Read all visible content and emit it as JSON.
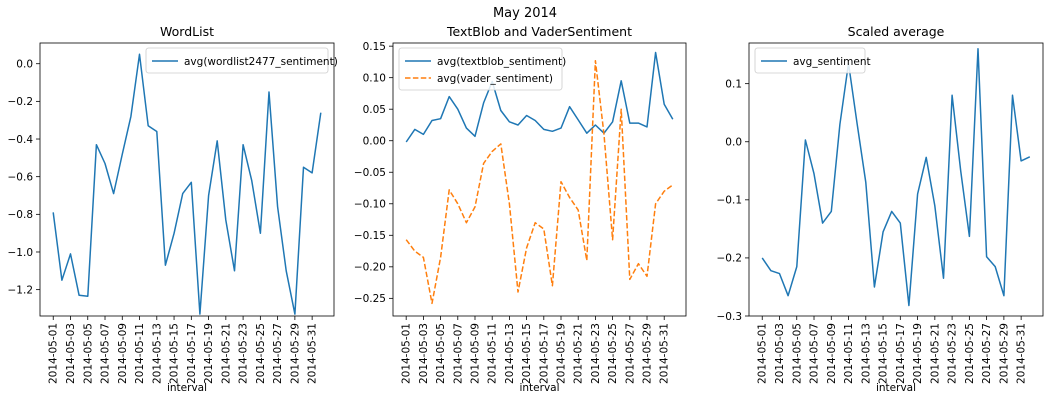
{
  "suptitle": "May 2014",
  "chart_data": [
    {
      "type": "line",
      "title": "WordList",
      "xlabel": "interval",
      "ylabel": "",
      "ylim": [
        -1.34,
        0.11
      ],
      "yticks": [
        0.0,
        -0.2,
        -0.4,
        -0.6,
        -0.8,
        -1.0,
        -1.2
      ],
      "ytick_labels": [
        "0.0",
        "−0.2",
        "−0.4",
        "−0.6",
        "−0.8",
        "−1.0",
        "−1.2"
      ],
      "grid": false,
      "legend": "upper right",
      "x": [
        "2014-05-01",
        "2014-05-02",
        "2014-05-03",
        "2014-05-04",
        "2014-05-05",
        "2014-05-06",
        "2014-05-07",
        "2014-05-08",
        "2014-05-09",
        "2014-05-10",
        "2014-05-11",
        "2014-05-12",
        "2014-05-13",
        "2014-05-14",
        "2014-05-15",
        "2014-05-16",
        "2014-05-17",
        "2014-05-18",
        "2014-05-19",
        "2014-05-20",
        "2014-05-21",
        "2014-05-22",
        "2014-05-23",
        "2014-05-24",
        "2014-05-25",
        "2014-05-26",
        "2014-05-27",
        "2014-05-28",
        "2014-05-29",
        "2014-05-30",
        "2014-05-31",
        "2014-06-01"
      ],
      "xtick_labels": [
        "2014-05-01",
        "2014-05-03",
        "2014-05-05",
        "2014-05-07",
        "2014-05-09",
        "2014-05-11",
        "2014-05-13",
        "2014-05-15",
        "2014-05-17",
        "2014-05-19",
        "2014-05-21",
        "2014-05-23",
        "2014-05-25",
        "2014-05-27",
        "2014-05-29",
        "2014-05-31"
      ],
      "series": [
        {
          "name": "avg(wordlist2477_sentiment)",
          "color": "#1f77b4",
          "dash": "solid",
          "values": [
            -0.79,
            -1.15,
            -1.01,
            -1.23,
            -1.235,
            -0.43,
            -0.53,
            -0.69,
            -0.48,
            -0.28,
            0.05,
            -0.33,
            -0.36,
            -1.07,
            -0.9,
            -0.69,
            -0.63,
            -1.33,
            -0.7,
            -0.41,
            -0.83,
            -1.1,
            -0.43,
            -0.62,
            -0.9,
            -0.15,
            -0.76,
            -1.1,
            -1.33,
            -0.55,
            -0.58,
            -0.26
          ]
        }
      ]
    },
    {
      "type": "line",
      "title": "TextBlob and VaderSentiment",
      "xlabel": "interval",
      "ylabel": "",
      "ylim": [
        -0.278,
        0.155
      ],
      "yticks": [
        0.15,
        0.1,
        0.05,
        0.0,
        -0.05,
        -0.1,
        -0.15,
        -0.2,
        -0.25
      ],
      "ytick_labels": [
        "0.15",
        "0.10",
        "0.05",
        "0.00",
        "−0.05",
        "−0.10",
        "−0.15",
        "−0.20",
        "−0.25"
      ],
      "grid": false,
      "legend": "upper left",
      "x": [
        "2014-05-01",
        "2014-05-02",
        "2014-05-03",
        "2014-05-04",
        "2014-05-05",
        "2014-05-06",
        "2014-05-07",
        "2014-05-08",
        "2014-05-09",
        "2014-05-10",
        "2014-05-11",
        "2014-05-12",
        "2014-05-13",
        "2014-05-14",
        "2014-05-15",
        "2014-05-16",
        "2014-05-17",
        "2014-05-18",
        "2014-05-19",
        "2014-05-20",
        "2014-05-21",
        "2014-05-22",
        "2014-05-23",
        "2014-05-24",
        "2014-05-25",
        "2014-05-26",
        "2014-05-27",
        "2014-05-28",
        "2014-05-29",
        "2014-05-30",
        "2014-05-31",
        "2014-06-01"
      ],
      "xtick_labels": [
        "2014-05-01",
        "2014-05-03",
        "2014-05-05",
        "2014-05-07",
        "2014-05-09",
        "2014-05-11",
        "2014-05-13",
        "2014-05-15",
        "2014-05-17",
        "2014-05-19",
        "2014-05-21",
        "2014-05-23",
        "2014-05-25",
        "2014-05-27",
        "2014-05-29",
        "2014-05-31"
      ],
      "series": [
        {
          "name": "avg(textblob_sentiment)",
          "color": "#1f77b4",
          "dash": "solid",
          "values": [
            -0.002,
            0.018,
            0.01,
            0.032,
            0.035,
            0.07,
            0.05,
            0.02,
            0.007,
            0.06,
            0.094,
            0.048,
            0.03,
            0.025,
            0.04,
            0.032,
            0.018,
            0.015,
            0.02,
            0.054,
            0.033,
            0.012,
            0.025,
            0.012,
            0.03,
            0.095,
            0.028,
            0.028,
            0.022,
            0.14,
            0.058,
            0.034
          ]
        },
        {
          "name": "avg(vader_sentiment)",
          "color": "#ff7f0e",
          "dash": "dashed",
          "values": [
            -0.157,
            -0.175,
            -0.185,
            -0.258,
            -0.185,
            -0.078,
            -0.1,
            -0.13,
            -0.105,
            -0.036,
            -0.017,
            -0.005,
            -0.1,
            -0.24,
            -0.17,
            -0.13,
            -0.14,
            -0.23,
            -0.065,
            -0.09,
            -0.11,
            -0.19,
            0.127,
            0.01,
            -0.157,
            0.05,
            -0.22,
            -0.195,
            -0.215,
            -0.1,
            -0.08,
            -0.07
          ]
        }
      ]
    },
    {
      "type": "line",
      "title": "Scaled average",
      "xlabel": "interval",
      "ylabel": "",
      "ylim": [
        -0.3,
        0.17
      ],
      "yticks": [
        0.1,
        0.0,
        -0.1,
        -0.2,
        -0.3
      ],
      "ytick_labels": [
        "0.1",
        "0.0",
        "−0.1",
        "−0.2",
        "−0.3"
      ],
      "grid": false,
      "legend": "upper left",
      "x": [
        "2014-05-01",
        "2014-05-02",
        "2014-05-03",
        "2014-05-04",
        "2014-05-05",
        "2014-05-06",
        "2014-05-07",
        "2014-05-08",
        "2014-05-09",
        "2014-05-10",
        "2014-05-11",
        "2014-05-12",
        "2014-05-13",
        "2014-05-14",
        "2014-05-15",
        "2014-05-16",
        "2014-05-17",
        "2014-05-18",
        "2014-05-19",
        "2014-05-20",
        "2014-05-21",
        "2014-05-22",
        "2014-05-23",
        "2014-05-24",
        "2014-05-25",
        "2014-05-26",
        "2014-05-27",
        "2014-05-28",
        "2014-05-29",
        "2014-05-30",
        "2014-05-31",
        "2014-06-01"
      ],
      "xtick_labels": [
        "2014-05-01",
        "2014-05-03",
        "2014-05-05",
        "2014-05-07",
        "2014-05-09",
        "2014-05-11",
        "2014-05-13",
        "2014-05-15",
        "2014-05-17",
        "2014-05-19",
        "2014-05-21",
        "2014-05-23",
        "2014-05-25",
        "2014-05-27",
        "2014-05-29",
        "2014-05-31"
      ],
      "series": [
        {
          "name": "avg_sentiment",
          "color": "#1f77b4",
          "dash": "solid",
          "values": [
            -0.2,
            -0.222,
            -0.227,
            -0.265,
            -0.215,
            0.003,
            -0.055,
            -0.14,
            -0.12,
            0.03,
            0.135,
            0.03,
            -0.07,
            -0.25,
            -0.155,
            -0.12,
            -0.14,
            -0.282,
            -0.09,
            -0.027,
            -0.11,
            -0.235,
            0.08,
            -0.05,
            -0.163,
            0.16,
            -0.198,
            -0.215,
            -0.265,
            0.08,
            -0.033,
            -0.026
          ]
        }
      ]
    }
  ]
}
